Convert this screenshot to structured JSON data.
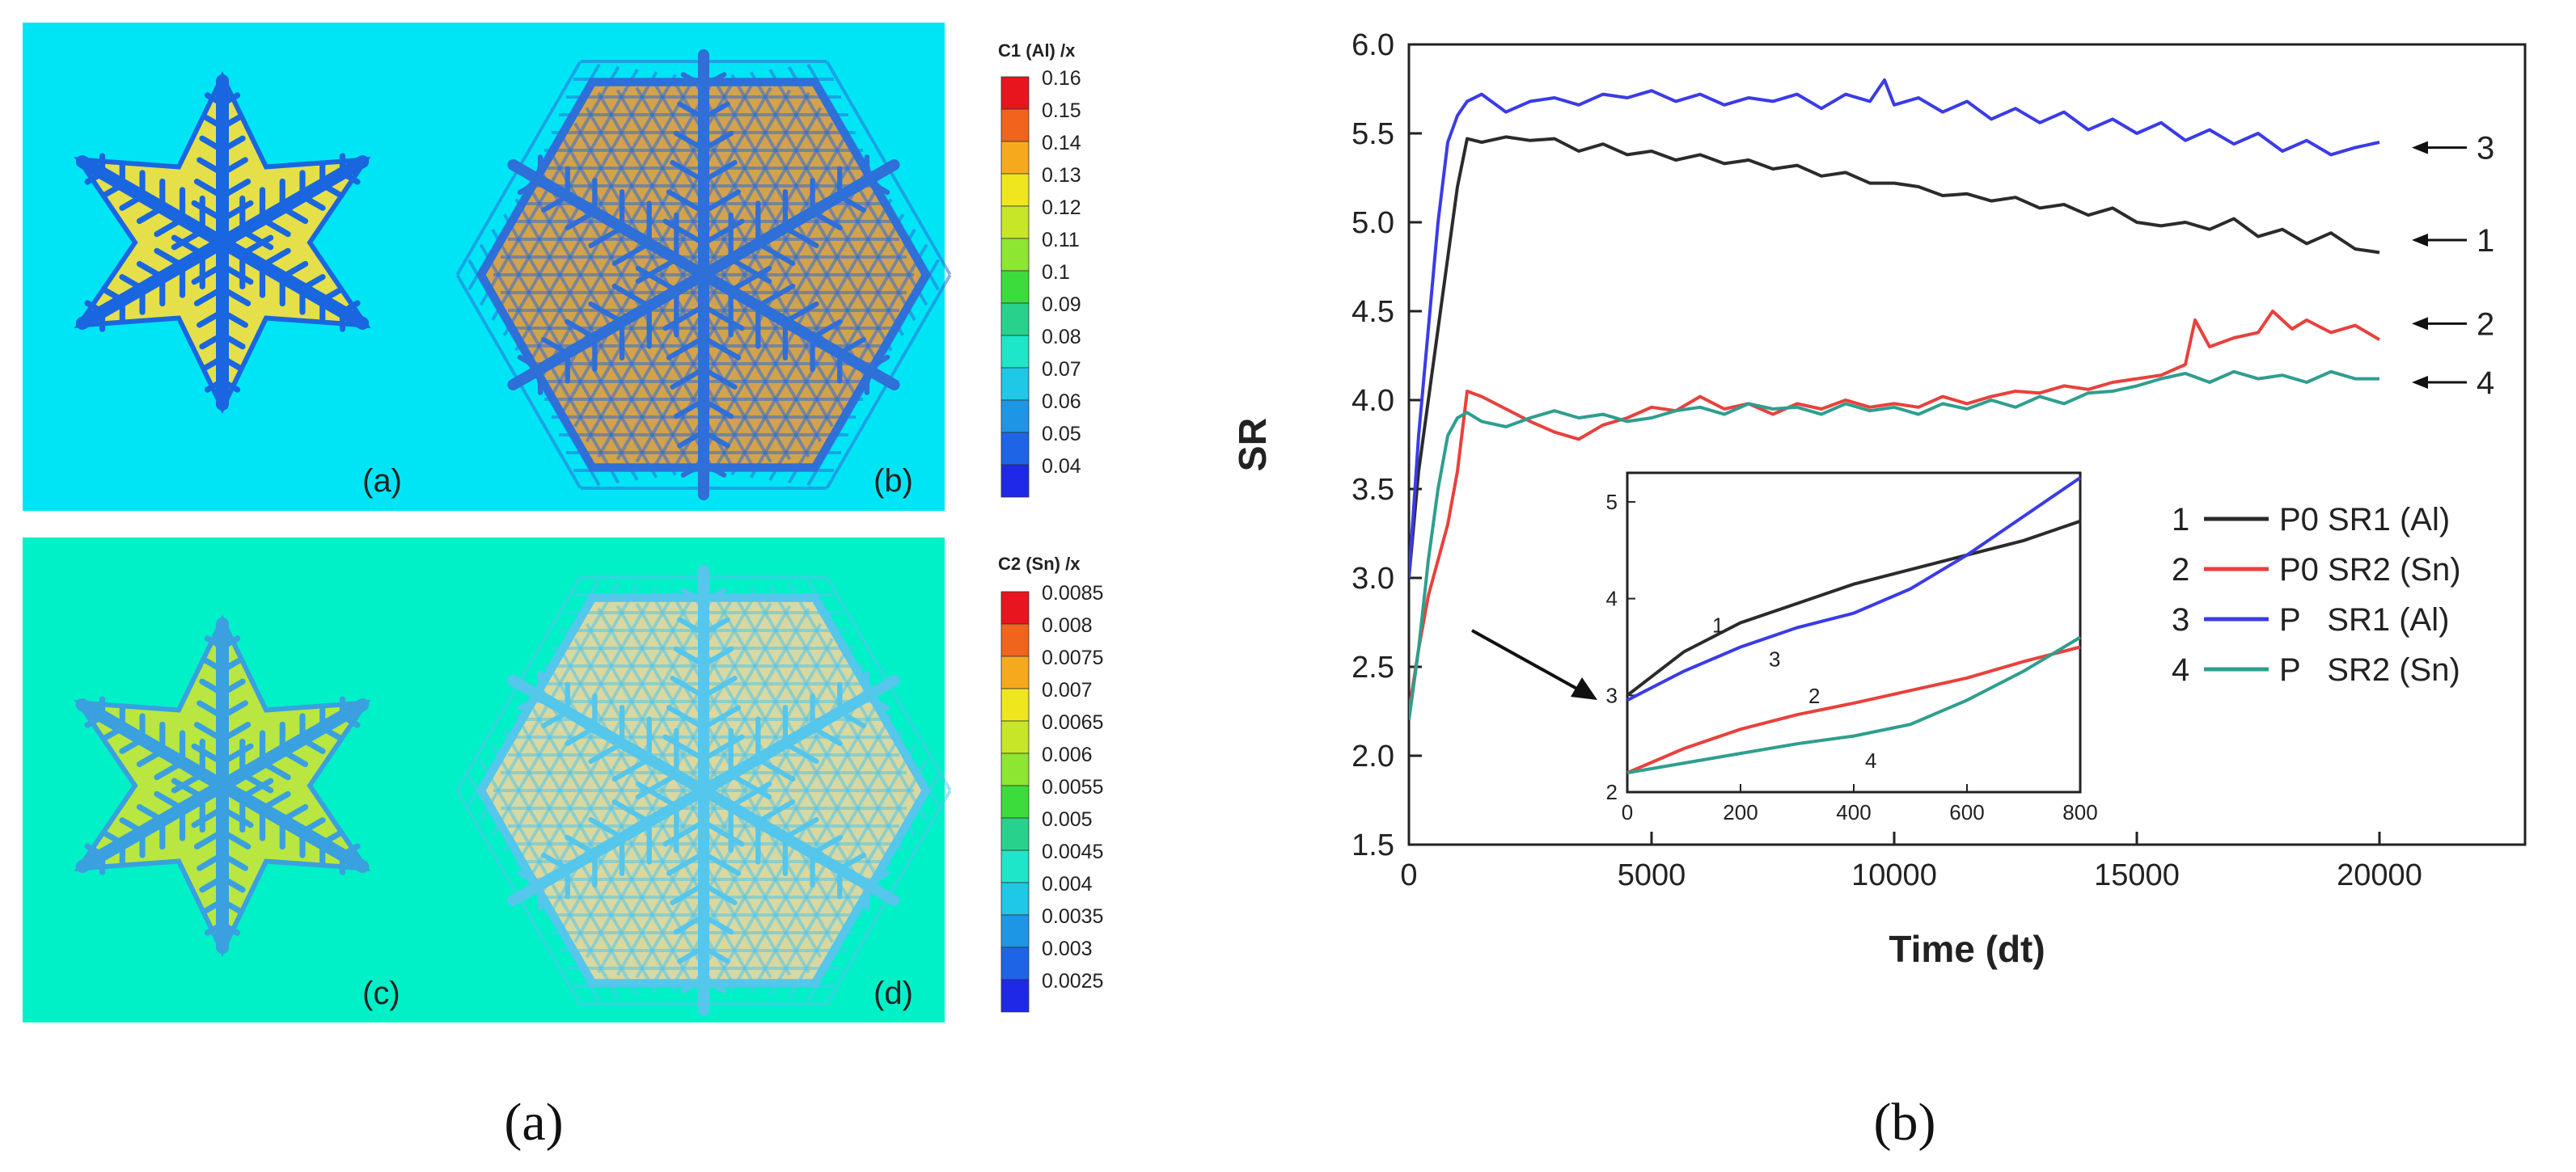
{
  "panel_a": {
    "caption": "(a)",
    "maps": [
      {
        "label": "(a)",
        "field": "C1",
        "background": "#00e5f6",
        "dendrite": "#1a66e0",
        "interdendritic": "#e5e04a"
      },
      {
        "label": "(b)",
        "field": "C1",
        "background": "#00e5f6",
        "dendrite": "#2f6fd8",
        "interdendritic": "#d3a24c"
      },
      {
        "label": "(c)",
        "field": "C2",
        "background": "#00f0c8",
        "dendrite": "#3aa0e0",
        "interdendritic": "#b9e640"
      },
      {
        "label": "(d)",
        "field": "C2",
        "background": "#00f0c8",
        "dendrite": "#55c6ec",
        "interdendritic": "#d8d8a0"
      }
    ],
    "colorbars": [
      {
        "title": "C1 (Al) /x",
        "labels": [
          "0.16",
          "0.15",
          "0.14",
          "0.13",
          "0.12",
          "0.11",
          "0.1",
          "0.09",
          "0.08",
          "0.07",
          "0.06",
          "0.05",
          "0.04"
        ],
        "colors": [
          "#e8141e",
          "#f0641e",
          "#f5aa1e",
          "#f0e61e",
          "#c8e628",
          "#8ce632",
          "#3cdc3c",
          "#28d28c",
          "#1ee6c8",
          "#1ec8e6",
          "#1e96e6",
          "#1e64e6",
          "#1e28e6"
        ]
      },
      {
        "title": "C2 (Sn) /x",
        "labels": [
          "0.0085",
          "0.008",
          "0.0075",
          "0.007",
          "0.0065",
          "0.006",
          "0.0055",
          "0.005",
          "0.0045",
          "0.004",
          "0.0035",
          "0.003",
          "0.0025"
        ],
        "colors": [
          "#e8141e",
          "#f0641e",
          "#f5aa1e",
          "#f0e61e",
          "#c8e628",
          "#8ce632",
          "#3cdc3c",
          "#28d28c",
          "#1ee6c8",
          "#1ec8e6",
          "#1e96e6",
          "#1e64e6",
          "#1e28e6"
        ]
      }
    ]
  },
  "chart_data": {
    "type": "line",
    "caption": "(b)",
    "xlabel": "Time (dt)",
    "ylabel": "SR",
    "xlim": [
      0,
      23000
    ],
    "ylim": [
      1.5,
      6.0
    ],
    "xticks": [
      "0",
      "5000",
      "10000",
      "15000",
      "20000"
    ],
    "xtick_values": [
      0,
      5000,
      10000,
      15000,
      20000
    ],
    "yticks": [
      "1.5",
      "2.0",
      "2.5",
      "3.0",
      "3.5",
      "4.0",
      "4.5",
      "5.0",
      "5.5",
      "6.0"
    ],
    "ytick_values": [
      1.5,
      2.0,
      2.5,
      3.0,
      3.5,
      4.0,
      4.5,
      5.0,
      5.5,
      6.0
    ],
    "legend_position": "right",
    "legend": [
      {
        "num": "1",
        "label": "P0 SR1 (Al)"
      },
      {
        "num": "2",
        "label": "P0 SR2 (Sn)"
      },
      {
        "num": "3",
        "label": "P   SR1 (Al)"
      },
      {
        "num": "4",
        "label": "P   SR2 (Sn)"
      }
    ],
    "series": [
      {
        "num": "1",
        "color": "#2b2b2b",
        "x": [
          0,
          200,
          400,
          600,
          800,
          1000,
          1200,
          1500,
          2000,
          2500,
          3000,
          3500,
          4000,
          4500,
          5000,
          5500,
          6000,
          6500,
          7000,
          7500,
          8000,
          8500,
          9000,
          9500,
          10000,
          10500,
          11000,
          11500,
          12000,
          12500,
          13000,
          13500,
          14000,
          14500,
          15000,
          15500,
          16000,
          16500,
          17000,
          17500,
          18000,
          18500,
          19000,
          19500,
          20000
        ],
        "y": [
          3.0,
          3.6,
          4.0,
          4.4,
          4.8,
          5.2,
          5.47,
          5.45,
          5.48,
          5.46,
          5.47,
          5.4,
          5.44,
          5.38,
          5.4,
          5.35,
          5.38,
          5.33,
          5.35,
          5.3,
          5.32,
          5.26,
          5.28,
          5.22,
          5.22,
          5.2,
          5.15,
          5.16,
          5.12,
          5.14,
          5.08,
          5.1,
          5.04,
          5.08,
          5.0,
          4.98,
          5.0,
          4.96,
          5.02,
          4.92,
          4.96,
          4.88,
          4.94,
          4.85,
          4.83
        ]
      },
      {
        "num": "2",
        "color": "#e8413c",
        "x": [
          0,
          200,
          400,
          600,
          800,
          1000,
          1200,
          1500,
          2000,
          2500,
          3000,
          3500,
          4000,
          4500,
          5000,
          5500,
          6000,
          6500,
          7000,
          7500,
          8000,
          8500,
          9000,
          9500,
          10000,
          10500,
          11000,
          11500,
          12000,
          12500,
          13000,
          13500,
          14000,
          14500,
          15000,
          15500,
          16000,
          16200,
          16500,
          17000,
          17500,
          17800,
          18200,
          18500,
          19000,
          19500,
          20000
        ],
        "y": [
          2.25,
          2.6,
          2.9,
          3.1,
          3.3,
          3.6,
          4.05,
          4.02,
          3.95,
          3.88,
          3.82,
          3.78,
          3.86,
          3.9,
          3.96,
          3.94,
          4.02,
          3.95,
          3.98,
          3.92,
          3.98,
          3.95,
          4.0,
          3.96,
          3.98,
          3.96,
          4.02,
          3.98,
          4.02,
          4.05,
          4.04,
          4.08,
          4.06,
          4.1,
          4.12,
          4.14,
          4.2,
          4.45,
          4.3,
          4.35,
          4.38,
          4.5,
          4.4,
          4.45,
          4.38,
          4.42,
          4.34
        ]
      },
      {
        "num": "3",
        "color": "#3b3be8",
        "x": [
          0,
          200,
          400,
          600,
          800,
          1000,
          1200,
          1500,
          2000,
          2500,
          3000,
          3500,
          4000,
          4500,
          5000,
          5500,
          6000,
          6500,
          7000,
          7500,
          8000,
          8500,
          9000,
          9500,
          9800,
          10000,
          10500,
          11000,
          11500,
          12000,
          12500,
          13000,
          13500,
          14000,
          14500,
          15000,
          15500,
          16000,
          16500,
          17000,
          17500,
          18000,
          18500,
          19000,
          19500,
          20000
        ],
        "y": [
          3.0,
          3.8,
          4.4,
          5.0,
          5.45,
          5.6,
          5.68,
          5.72,
          5.62,
          5.68,
          5.7,
          5.66,
          5.72,
          5.7,
          5.74,
          5.68,
          5.72,
          5.66,
          5.7,
          5.68,
          5.72,
          5.64,
          5.72,
          5.68,
          5.8,
          5.66,
          5.7,
          5.62,
          5.68,
          5.58,
          5.64,
          5.56,
          5.62,
          5.52,
          5.58,
          5.5,
          5.56,
          5.46,
          5.52,
          5.44,
          5.5,
          5.4,
          5.46,
          5.38,
          5.42,
          5.45
        ]
      },
      {
        "num": "4",
        "color": "#2f9e8e",
        "x": [
          0,
          200,
          400,
          600,
          800,
          1000,
          1200,
          1500,
          2000,
          2500,
          3000,
          3500,
          4000,
          4500,
          5000,
          5500,
          6000,
          6500,
          7000,
          7500,
          8000,
          8500,
          9000,
          9500,
          10000,
          10500,
          11000,
          11500,
          12000,
          12500,
          13000,
          13500,
          14000,
          14500,
          15000,
          15500,
          16000,
          16500,
          17000,
          17500,
          18000,
          18500,
          19000,
          19500,
          20000
        ],
        "y": [
          2.2,
          2.6,
          3.1,
          3.5,
          3.8,
          3.9,
          3.93,
          3.88,
          3.85,
          3.9,
          3.94,
          3.9,
          3.92,
          3.88,
          3.9,
          3.94,
          3.96,
          3.92,
          3.98,
          3.95,
          3.96,
          3.92,
          3.98,
          3.94,
          3.96,
          3.92,
          3.98,
          3.95,
          4.0,
          3.96,
          4.02,
          3.98,
          4.04,
          4.05,
          4.08,
          4.12,
          4.15,
          4.1,
          4.16,
          4.12,
          4.14,
          4.1,
          4.16,
          4.12,
          4.12
        ]
      }
    ],
    "arrows": [
      {
        "label": "3",
        "y": 5.42
      },
      {
        "label": "1",
        "y": 4.9
      },
      {
        "label": "2",
        "y": 4.43
      },
      {
        "label": "4",
        "y": 4.1
      }
    ],
    "inset": {
      "xlim": [
        0,
        800
      ],
      "ylim": [
        2,
        5.3
      ],
      "xticks": [
        "0",
        "200",
        "400",
        "600",
        "800"
      ],
      "xtick_values": [
        0,
        200,
        400,
        600,
        800
      ],
      "yticks": [
        "2",
        "3",
        "4",
        "5"
      ],
      "ytick_values": [
        2,
        3,
        4,
        5
      ],
      "series": [
        {
          "num": "1",
          "color": "#2b2b2b",
          "x": [
            0,
            100,
            200,
            300,
            400,
            500,
            600,
            700,
            800
          ],
          "y": [
            3.0,
            3.45,
            3.75,
            3.95,
            4.15,
            4.3,
            4.45,
            4.6,
            4.8
          ],
          "label_at": [
            150,
            3.65
          ]
        },
        {
          "num": "3",
          "color": "#3b3be8",
          "x": [
            0,
            100,
            200,
            300,
            400,
            500,
            600,
            700,
            800
          ],
          "y": [
            2.95,
            3.25,
            3.5,
            3.7,
            3.85,
            4.1,
            4.45,
            4.85,
            5.25
          ],
          "label_at": [
            250,
            3.3
          ]
        },
        {
          "num": "2",
          "color": "#e8413c",
          "x": [
            0,
            100,
            200,
            300,
            400,
            500,
            600,
            700,
            800
          ],
          "y": [
            2.2,
            2.45,
            2.65,
            2.8,
            2.92,
            3.05,
            3.18,
            3.35,
            3.5
          ],
          "label_at": [
            320,
            2.92
          ]
        },
        {
          "num": "4",
          "color": "#2f9e8e",
          "x": [
            0,
            100,
            200,
            300,
            400,
            500,
            600,
            700,
            800
          ],
          "y": [
            2.2,
            2.3,
            2.4,
            2.5,
            2.58,
            2.7,
            2.95,
            3.25,
            3.6
          ],
          "label_at": [
            420,
            2.25
          ]
        }
      ]
    }
  }
}
